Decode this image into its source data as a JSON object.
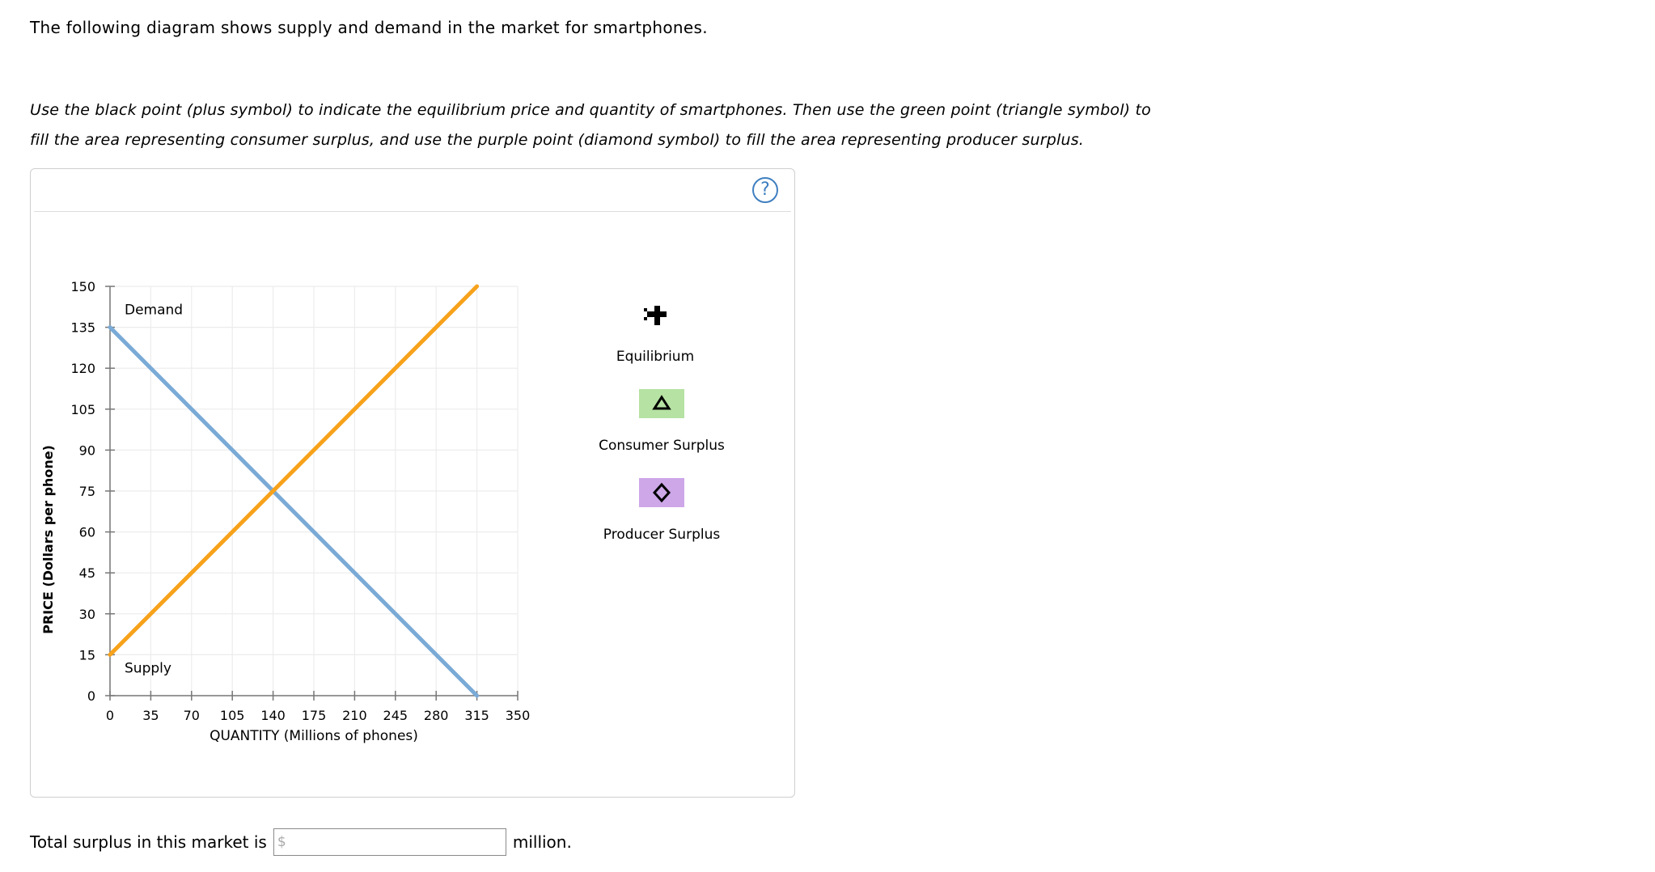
{
  "intro_text": "The following diagram shows supply and demand in the market for smartphones.",
  "instructions": [
    "Use the black point (plus symbol) to indicate the equilibrium price and quantity of smartphones. Then use the green point (triangle symbol) to",
    "fill the area representing consumer surplus, and use the purple point (diamond symbol) to fill the area representing producer surplus."
  ],
  "help_label": "?",
  "chart_data": {
    "type": "line",
    "xlabel": "QUANTITY (Millions of phones)",
    "ylabel": "PRICE (Dollars per phone)",
    "xlim": [
      0,
      350
    ],
    "ylim": [
      0,
      150
    ],
    "x_ticks": [
      0,
      35,
      70,
      105,
      140,
      175,
      210,
      245,
      280,
      315,
      350
    ],
    "y_ticks": [
      0,
      15,
      30,
      45,
      60,
      75,
      90,
      105,
      120,
      135,
      150
    ],
    "grid": true,
    "series": [
      {
        "name": "Demand",
        "color": "#7aaad6",
        "x": [
          0,
          315
        ],
        "y": [
          135,
          0
        ]
      },
      {
        "name": "Supply",
        "color": "#f7a21b",
        "x": [
          0,
          315
        ],
        "y": [
          15,
          150
        ]
      }
    ]
  },
  "tools": {
    "equilibrium": {
      "label": "Equilibrium",
      "icon": "plus-icon",
      "color": "#000000"
    },
    "consumer_surplus": {
      "label": "Consumer Surplus",
      "icon": "triangle-icon",
      "color": "#b6e2a3"
    },
    "producer_surplus": {
      "label": "Producer Surplus",
      "icon": "diamond-icon",
      "color": "#cda7e8"
    }
  },
  "total": {
    "prefix": "Total surplus in this market is",
    "placeholder": "$",
    "suffix": "million."
  }
}
